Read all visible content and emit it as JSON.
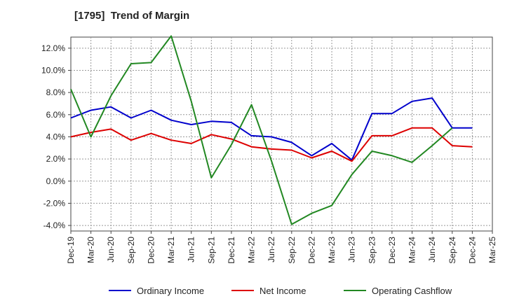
{
  "chart_data": {
    "type": "line",
    "title": "[1795]  Trend of Margin",
    "xlabel": "",
    "ylabel": "",
    "categories": [
      "Dec-19",
      "Mar-20",
      "Jun-20",
      "Sep-20",
      "Dec-20",
      "Mar-21",
      "Jun-21",
      "Sep-21",
      "Dec-21",
      "Mar-22",
      "Jun-22",
      "Sep-22",
      "Dec-22",
      "Mar-23",
      "Jun-23",
      "Sep-23",
      "Dec-23",
      "Mar-24",
      "Jun-24",
      "Sep-24",
      "Dec-24",
      "Mar-25"
    ],
    "y_ticks": [
      "12.0%",
      "10.0%",
      "8.0%",
      "6.0%",
      "4.0%",
      "2.0%",
      "0.0%",
      "-2.0%",
      "-4.0%"
    ],
    "ylim": [
      -4.5,
      13.0
    ],
    "grid": true,
    "legend_position": "bottom",
    "series": [
      {
        "name": "Ordinary Income",
        "color": "#0000cc",
        "values": [
          5.7,
          6.4,
          6.7,
          5.7,
          6.4,
          5.5,
          5.1,
          5.4,
          5.3,
          4.1,
          4.0,
          3.5,
          2.3,
          3.4,
          1.9,
          6.1,
          6.1,
          7.2,
          7.5,
          4.8,
          4.8,
          null
        ]
      },
      {
        "name": "Net Income",
        "color": "#dd0000",
        "values": [
          4.0,
          4.4,
          4.7,
          3.7,
          4.3,
          3.7,
          3.4,
          4.2,
          3.8,
          3.1,
          2.9,
          2.8,
          2.1,
          2.7,
          1.8,
          4.1,
          4.1,
          4.8,
          4.8,
          3.2,
          3.1,
          null
        ]
      },
      {
        "name": "Operating Cashflow",
        "color": "#228822",
        "values": [
          8.3,
          4.0,
          7.7,
          10.6,
          10.7,
          13.1,
          7.2,
          0.3,
          3.3,
          6.9,
          1.8,
          -3.9,
          -2.9,
          -2.2,
          0.6,
          2.7,
          2.3,
          1.7,
          3.2,
          4.8,
          null,
          null
        ]
      }
    ]
  }
}
